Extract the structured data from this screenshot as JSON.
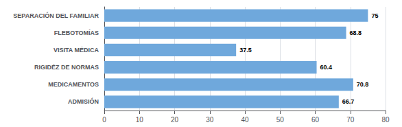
{
  "chart_data": {
    "type": "bar",
    "orientation": "horizontal",
    "categories": [
      "ADMISIÓN",
      "MEDICAMENTOS",
      "RIGIDÉZ DE NORMAS",
      "VISITA MÉDICA",
      "FLEBOTOMÍAS",
      "SEPARACIÓN DEL FAMILIAR"
    ],
    "values": [
      66.7,
      70.8,
      60.4,
      37.5,
      68.8,
      75
    ],
    "color": "#6fa8dc",
    "xlim": [
      0,
      80
    ],
    "xticks": [
      0,
      10,
      20,
      30,
      40,
      50,
      60,
      70,
      80
    ],
    "grid": true,
    "data_labels": true
  }
}
